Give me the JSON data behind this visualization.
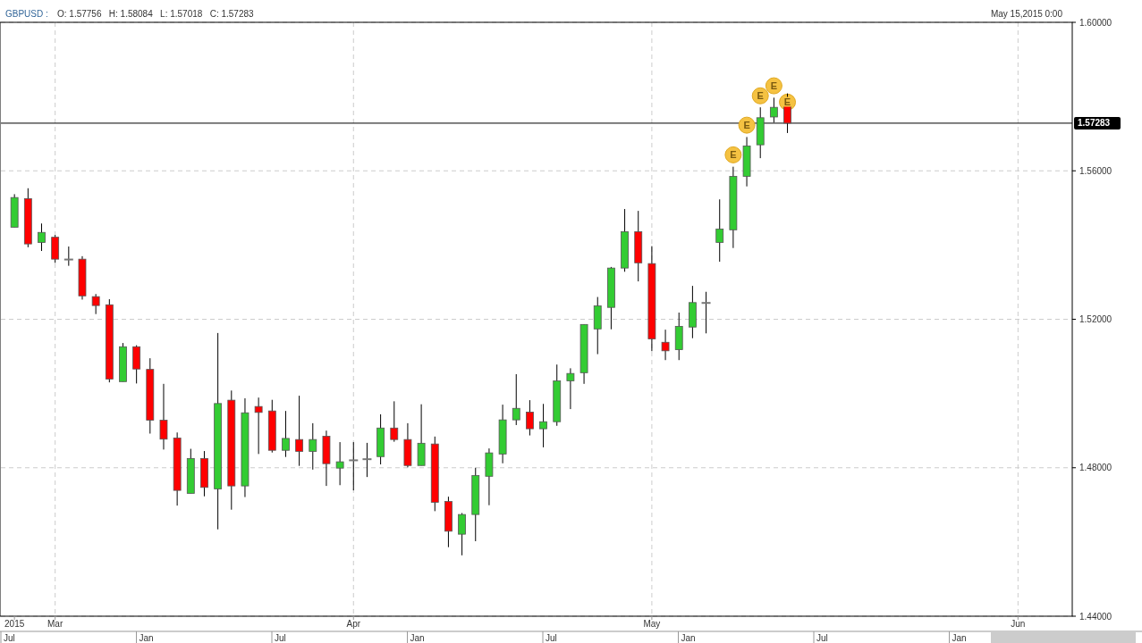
{
  "chart_data": {
    "type": "candlestick",
    "title": "GBPUSD :",
    "subtitle": "O: 1.57756   H: 1.58084   L: 1.57018   C: 1.57283",
    "categories": [
      "2015",
      null,
      null,
      "Mar",
      null,
      null,
      null,
      null,
      null,
      null,
      null,
      null,
      null,
      null,
      null,
      null,
      null,
      null,
      null,
      null,
      null,
      null,
      null,
      null,
      null,
      "Apr",
      null,
      null,
      null,
      null,
      null,
      null,
      null,
      null,
      null,
      null,
      null,
      null,
      null,
      null,
      null,
      null,
      null,
      null,
      null,
      null,
      null,
      "May",
      null,
      null,
      null,
      null,
      null,
      null,
      null,
      null,
      null,
      null,
      null,
      null,
      null,
      null,
      null,
      null,
      null,
      null,
      null,
      null,
      null,
      null,
      null,
      null,
      null,
      null,
      "Jun",
      null,
      null,
      null
    ],
    "ohlc": [
      [
        1.5448,
        1.5537,
        1.5448,
        1.5528
      ],
      [
        1.5525,
        1.5553,
        1.5394,
        1.5403
      ],
      [
        1.5407,
        1.5458,
        1.5384,
        1.5434
      ],
      [
        1.5421,
        1.5427,
        1.5352,
        1.5362
      ],
      [
        1.5361,
        1.5396,
        1.5344,
        1.5361
      ],
      [
        1.5362,
        1.537,
        1.5253,
        1.5263
      ],
      [
        1.5261,
        1.5268,
        1.5214,
        1.5237
      ],
      [
        1.5239,
        1.5254,
        1.503,
        1.5039
      ],
      [
        1.5032,
        1.5136,
        1.5032,
        1.5126
      ],
      [
        1.5126,
        1.513,
        1.5027,
        1.5066
      ],
      [
        1.5065,
        1.5095,
        1.4892,
        1.4928
      ],
      [
        1.4928,
        1.5026,
        1.4849,
        1.4877
      ],
      [
        1.488,
        1.4895,
        1.4698,
        1.4739
      ],
      [
        1.4731,
        1.4851,
        1.4731,
        1.4825
      ],
      [
        1.4825,
        1.4845,
        1.4723,
        1.4747
      ],
      [
        1.4743,
        1.5163,
        1.4634,
        1.4973
      ],
      [
        1.4982,
        1.5008,
        1.4687,
        1.4751
      ],
      [
        1.4751,
        1.4987,
        1.4721,
        1.4948
      ],
      [
        1.4965,
        1.4989,
        1.4837,
        1.4949
      ],
      [
        1.4953,
        1.4983,
        1.4841,
        1.4847
      ],
      [
        1.4847,
        1.4953,
        1.4829,
        1.4879
      ],
      [
        1.4876,
        1.4994,
        1.4805,
        1.4844
      ],
      [
        1.4844,
        1.492,
        1.4795,
        1.4876
      ],
      [
        1.4885,
        1.49,
        1.4751,
        1.4811
      ],
      [
        1.4799,
        1.4869,
        1.4753,
        1.4816
      ],
      [
        1.482,
        1.4869,
        1.4739,
        1.482
      ],
      [
        1.4823,
        1.4867,
        1.4775,
        1.4823
      ],
      [
        1.483,
        1.4944,
        1.4809,
        1.4907
      ],
      [
        1.4907,
        1.4979,
        1.487,
        1.4876
      ],
      [
        1.4876,
        1.492,
        1.4801,
        1.4806
      ],
      [
        1.4806,
        1.4971,
        1.4806,
        1.4866
      ],
      [
        1.4864,
        1.4884,
        1.4683,
        1.4707
      ],
      [
        1.4709,
        1.4722,
        1.4586,
        1.4629
      ],
      [
        1.4621,
        1.4678,
        1.4564,
        1.4674
      ],
      [
        1.4674,
        1.48,
        1.4602,
        1.4779
      ],
      [
        1.4777,
        1.4852,
        1.4699,
        1.484
      ],
      [
        1.4837,
        1.497,
        1.4812,
        1.4929
      ],
      [
        1.4929,
        1.5052,
        1.4915,
        1.496
      ],
      [
        1.495,
        1.4982,
        1.4887,
        1.4905
      ],
      [
        1.4905,
        1.4972,
        1.4855,
        1.4924
      ],
      [
        1.4924,
        1.5078,
        1.4913,
        1.5034
      ],
      [
        1.5034,
        1.5068,
        1.4958,
        1.5054
      ],
      [
        1.5056,
        1.5186,
        1.5026,
        1.5186
      ],
      [
        1.5174,
        1.526,
        1.5106,
        1.5236
      ],
      [
        1.5232,
        1.5341,
        1.5173,
        1.5338
      ],
      [
        1.5338,
        1.5497,
        1.5328,
        1.5436
      ],
      [
        1.5436,
        1.5492,
        1.5302,
        1.5352
      ],
      [
        1.535,
        1.5397,
        1.5114,
        1.5147
      ],
      [
        1.5138,
        1.5172,
        1.509,
        1.5115
      ],
      [
        1.5118,
        1.5218,
        1.509,
        1.5181
      ],
      [
        1.5179,
        1.529,
        1.5149,
        1.5245
      ],
      [
        1.5244,
        1.5274,
        1.5162,
        1.5244
      ],
      [
        1.5407,
        1.5523,
        1.5355,
        1.5443
      ],
      [
        1.5441,
        1.5611,
        1.5392,
        1.5585
      ],
      [
        1.5585,
        1.5691,
        1.5558,
        1.5667
      ],
      [
        1.567,
        1.5771,
        1.5634,
        1.5743
      ],
      [
        1.5745,
        1.5797,
        1.573,
        1.5771
      ],
      [
        1.57756,
        1.58084,
        1.57018,
        1.57283
      ],
      null,
      null,
      null,
      null,
      null,
      null,
      null,
      null,
      null,
      null,
      null,
      null,
      null,
      null,
      null,
      null,
      null,
      null,
      null,
      null
    ],
    "colors": [
      "#33cc33",
      "#ff0000",
      "#33cc33",
      "#ff0000",
      "#777777",
      "#ff0000",
      "#ff0000",
      "#ff0000",
      "#33cc33",
      "#ff0000",
      "#ff0000",
      "#ff0000",
      "#ff0000",
      "#33cc33",
      "#ff0000",
      "#33cc33",
      "#ff0000",
      "#33cc33",
      "#ff0000",
      "#ff0000",
      "#33cc33",
      "#ff0000",
      "#33cc33",
      "#ff0000",
      "#33cc33",
      "#777777",
      "#777777",
      "#33cc33",
      "#ff0000",
      "#ff0000",
      "#33cc33",
      "#ff0000",
      "#ff0000",
      "#33cc33",
      "#33cc33",
      "#33cc33",
      "#33cc33",
      "#33cc33",
      "#ff0000",
      "#33cc33",
      "#33cc33",
      "#33cc33",
      "#33cc33",
      "#33cc33",
      "#33cc33",
      "#33cc33",
      "#ff0000",
      "#ff0000",
      "#ff0000",
      "#33cc33",
      "#33cc33",
      "#777777",
      "#33cc33",
      "#33cc33",
      "#33cc33",
      "#33cc33",
      "#33cc33",
      "#ff0000",
      null,
      null,
      null,
      null,
      null,
      null,
      null,
      null,
      null,
      null,
      null,
      null,
      null,
      null,
      null,
      null,
      null,
      null,
      null,
      null
    ],
    "series": [
      {
        "type": "scatter",
        "color": "#f5c242",
        "values": [
          null,
          null,
          null,
          null,
          null,
          null,
          null,
          null,
          null,
          null,
          null,
          null,
          null,
          null,
          null,
          null,
          null,
          null,
          null,
          null,
          null,
          null,
          null,
          null,
          null,
          null,
          null,
          null,
          null,
          null,
          null,
          null,
          null,
          null,
          null,
          null,
          null,
          null,
          null,
          null,
          null,
          null,
          null,
          null,
          null,
          null,
          null,
          null,
          null,
          null,
          null,
          null,
          null,
          1.5643,
          1.5723,
          1.5802,
          1.5829,
          1.5785,
          null,
          null,
          null,
          null,
          null,
          null,
          null,
          null,
          null,
          null,
          null,
          null,
          null,
          null,
          null,
          null,
          null,
          null,
          null,
          null
        ],
        "value_labels": [
          null,
          null,
          null,
          null,
          null,
          null,
          null,
          null,
          null,
          null,
          null,
          null,
          null,
          null,
          null,
          null,
          null,
          null,
          null,
          null,
          null,
          null,
          null,
          null,
          null,
          null,
          null,
          null,
          null,
          null,
          null,
          null,
          null,
          null,
          null,
          null,
          null,
          null,
          null,
          null,
          null,
          null,
          null,
          null,
          null,
          null,
          null,
          null,
          null,
          null,
          null,
          null,
          null,
          "E",
          "E",
          "E",
          "E",
          "E",
          null,
          null,
          null,
          null,
          null,
          null,
          null,
          null,
          null,
          null,
          null,
          null,
          null,
          null,
          null,
          null,
          null,
          null,
          null,
          null
        ]
      }
    ],
    "marker": "circle",
    "ylim": [
      1.44,
      1.6
    ],
    "yticks": [
      {
        "value": 1.44,
        "label": "1.44000"
      },
      {
        "value": 1.48,
        "label": "1.48000"
      },
      {
        "value": 1.52,
        "label": "1.52000"
      },
      {
        "value": 1.56,
        "label": "1.56000"
      },
      {
        "value": 1.6,
        "label": "1.60000"
      }
    ],
    "grid": true,
    "ref_lines": [
      {
        "axis": "y",
        "value": 1.57283,
        "label": "1.57283",
        "color": "#000000"
      }
    ],
    "annotations": [
      "May 15,2015 0:00",
      "Jul",
      "Jan",
      "Jul",
      "Jan",
      "Jul",
      "Jan",
      "Jul",
      "Jan"
    ]
  }
}
